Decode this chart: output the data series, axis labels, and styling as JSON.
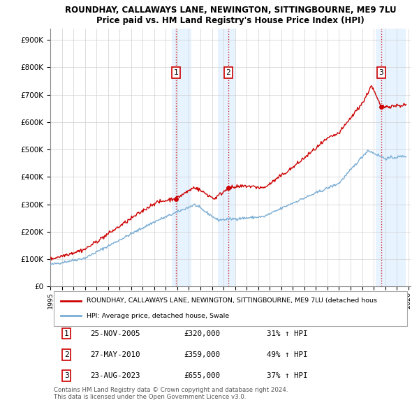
{
  "title": "ROUNDHAY, CALLAWAYS LANE, NEWINGTON, SITTINGBOURNE, ME9 7LU",
  "subtitle": "Price paid vs. HM Land Registry's House Price Index (HPI)",
  "sale_color": "#cc0000",
  "hpi_color": "#7aadd4",
  "shading_color": "#ddeeff",
  "yticks": [
    0,
    100000,
    200000,
    300000,
    400000,
    500000,
    600000,
    700000,
    800000,
    900000
  ],
  "ytick_labels": [
    "£0",
    "£100K",
    "£200K",
    "£300K",
    "£400K",
    "£500K",
    "£600K",
    "£700K",
    "£800K",
    "£900K"
  ],
  "ylim": [
    0,
    940000
  ],
  "xlim": [
    1995.0,
    2026.2
  ],
  "xtick_years": [
    1995,
    1996,
    1997,
    1998,
    1999,
    2000,
    2001,
    2002,
    2003,
    2004,
    2005,
    2006,
    2007,
    2008,
    2009,
    2010,
    2011,
    2012,
    2013,
    2014,
    2015,
    2016,
    2017,
    2018,
    2019,
    2020,
    2021,
    2022,
    2023,
    2024,
    2025,
    2026
  ],
  "transactions": [
    {
      "label": "1",
      "date": "25-NOV-2005",
      "price": 320000,
      "hpi_pct": "31%",
      "x_year": 2005.9
    },
    {
      "label": "2",
      "date": "27-MAY-2010",
      "price": 359000,
      "hpi_pct": "49%",
      "x_year": 2010.4
    },
    {
      "label": "3",
      "date": "23-AUG-2023",
      "price": 655000,
      "hpi_pct": "37%",
      "x_year": 2023.65
    }
  ],
  "legend_line1": "ROUNDHAY, CALLAWAYS LANE, NEWINGTON, SITTINGBOURNE, ME9 7LU (detached hous",
  "legend_line2": "HPI: Average price, detached house, Swale",
  "table_rows": [
    [
      "1",
      "25-NOV-2005",
      "£320,000",
      "31% ↑ HPI"
    ],
    [
      "2",
      "27-MAY-2010",
      "£359,000",
      "49% ↑ HPI"
    ],
    [
      "3",
      "23-AUG-2023",
      "£655,000",
      "37% ↑ HPI"
    ]
  ],
  "footnote": "Contains HM Land Registry data © Crown copyright and database right 2024.\nThis data is licensed under the Open Government Licence v3.0."
}
